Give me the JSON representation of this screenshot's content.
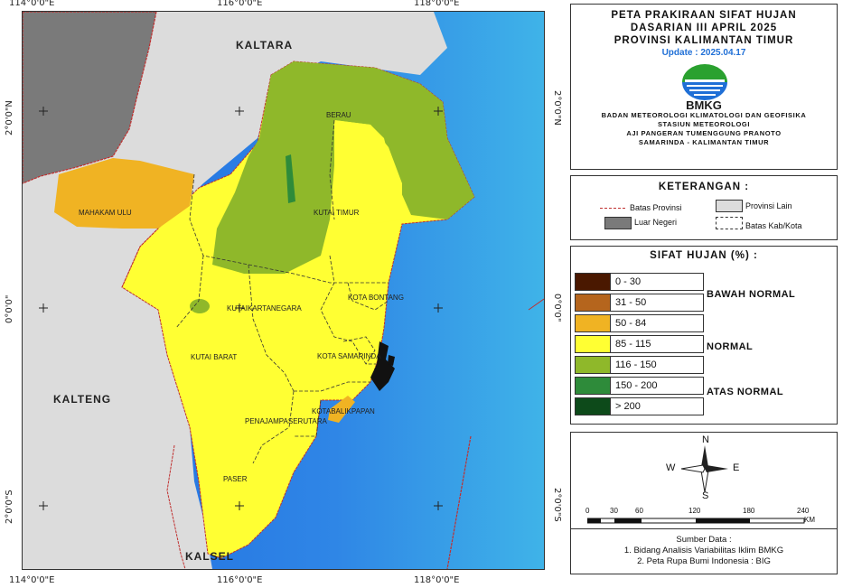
{
  "coordinates": {
    "top": [
      "114°0'0\"E",
      "116°0'0\"E",
      "118°0'0\"E"
    ],
    "bottom": [
      "114°0'0\"E",
      "116°0'0\"E",
      "118°0'0\"E"
    ],
    "left": [
      "2°0'0\"N",
      "0°0'0\"",
      "2°0'0\"S"
    ],
    "right": [
      "2°0'0\"N",
      "0°0'0\"",
      "2°0'0\"S"
    ]
  },
  "map": {
    "regions": [
      "KALTARA",
      "KALTENG",
      "KALSEL"
    ],
    "districts": [
      "BERAU",
      "MAHAKAM ULU",
      "KUTAI TIMUR",
      "KOTA BONTANG",
      "KUTAIKARTANEGARA",
      "KUTAI BARAT",
      "KOTA SAMARINDA",
      "KOTABALIKPAPAN",
      "PENAJAMPASERUTARA",
      "PASER"
    ]
  },
  "title_panel": {
    "lines": [
      "PETA PRAKIRAAN SIFAT HUJAN",
      "DASARIAN III APRIL 2025",
      "PROVINSI KALIMANTAN TIMUR"
    ],
    "update": "Update : 2025.04.17",
    "logo_text": "BMKG",
    "agency": [
      "BADAN METEOROLOGI KLIMATOLOGI DAN GEOFISIKA",
      "STASIUN METEOROLOGI",
      "AJI PANGERAN TUMENGGUNG PRANOTO",
      "SAMARINDA - KALIMANTAN TIMUR"
    ]
  },
  "legend": {
    "title": "KETERANGAN :",
    "items": {
      "batas_provinsi": "Batas Provinsi",
      "provinsi_lain": "Provinsi Lain",
      "luar_negeri": "Luar Negeri",
      "batas_kab": "Batas Kab/Kota"
    }
  },
  "sifat_hujan": {
    "title": "SIFAT HUJAN (%) :",
    "classes": [
      {
        "label": "0 - 30",
        "color": "#4a1800"
      },
      {
        "label": "31 - 50",
        "color": "#b5651d"
      },
      {
        "label": "50 - 84",
        "color": "#f0b323"
      },
      {
        "label": "85 - 115",
        "color": "#ffff33"
      },
      {
        "label": "116 - 150",
        "color": "#8fb82a"
      },
      {
        "label": "150 - 200",
        "color": "#2e8b3a"
      },
      {
        "label": "> 200",
        "color": "#0d4a1a"
      }
    ],
    "categories": [
      "BAWAH NORMAL",
      "NORMAL",
      "ATAS NORMAL"
    ]
  },
  "scale": {
    "directions": {
      "n": "N",
      "s": "S",
      "e": "E",
      "w": "W"
    },
    "ticks": [
      "0",
      "30",
      "60",
      "120",
      "180",
      "240"
    ],
    "unit": "KM"
  },
  "source": {
    "title": "Sumber Data :",
    "lines": [
      "1. Bidang Analisis Variabilitas Iklim BMKG",
      "2. Peta Rupa Bumi Indonesia : BIG"
    ]
  },
  "colors": {
    "sea": "#2f7fe0",
    "land_other": "#dcdcdc",
    "foreign": "#7a7a7a",
    "normal": "#ffff33",
    "above": "#8fb82a",
    "below": "#f0b323"
  }
}
